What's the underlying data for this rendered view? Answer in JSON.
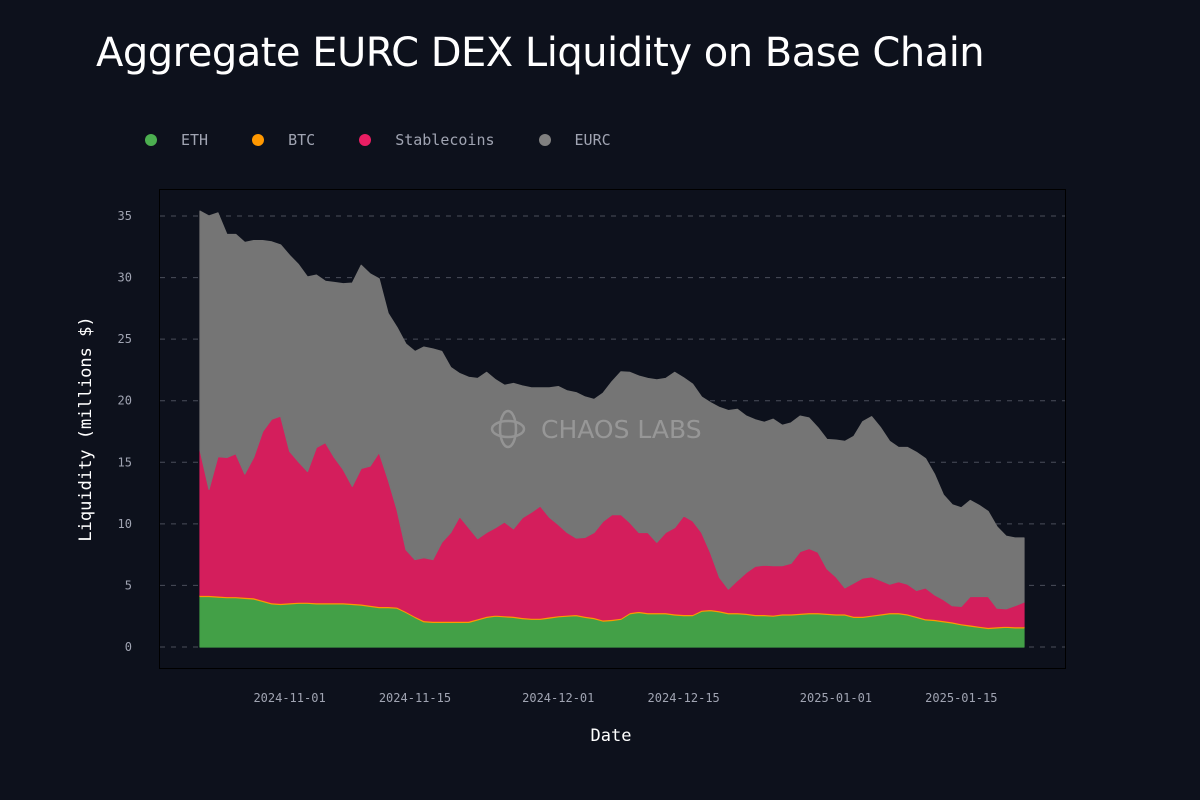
{
  "chart_data": {
    "type": "area",
    "stacked": true,
    "title": "Aggregate EURC DEX Liquidity on Base Chain",
    "xlabel": "Date",
    "ylabel": "Liquidity (millions $)",
    "ylim": [
      0,
      37
    ],
    "yticks": [
      "0",
      "5",
      "10",
      "15",
      "20",
      "25",
      "30",
      "35"
    ],
    "xticks": [
      "2024-11-01",
      "2024-11-15",
      "2024-12-01",
      "2024-12-15",
      "2025-01-01",
      "2025-01-15"
    ],
    "grid": "horizontal dashed",
    "legend": "top-left",
    "watermark": "CHAOS LABS",
    "x": [
      "2024-10-22",
      "2024-10-23",
      "2024-10-24",
      "2024-10-25",
      "2024-10-26",
      "2024-10-27",
      "2024-10-28",
      "2024-10-29",
      "2024-10-30",
      "2024-10-31",
      "2024-11-01",
      "2024-11-02",
      "2024-11-03",
      "2024-11-04",
      "2024-11-05",
      "2024-11-06",
      "2024-11-07",
      "2024-11-08",
      "2024-11-09",
      "2024-11-10",
      "2024-11-11",
      "2024-11-12",
      "2024-11-13",
      "2024-11-14",
      "2024-11-15",
      "2024-11-16",
      "2024-11-17",
      "2024-11-18",
      "2024-11-19",
      "2024-11-20",
      "2024-11-21",
      "2024-11-22",
      "2024-11-23",
      "2024-11-24",
      "2024-11-25",
      "2024-11-26",
      "2024-11-27",
      "2024-11-28",
      "2024-11-29",
      "2024-11-30",
      "2024-12-01",
      "2024-12-02",
      "2024-12-03",
      "2024-12-04",
      "2024-12-05",
      "2024-12-06",
      "2024-12-07",
      "2024-12-08",
      "2024-12-09",
      "2024-12-10",
      "2024-12-11",
      "2024-12-12",
      "2024-12-13",
      "2024-12-14",
      "2024-12-15",
      "2024-12-16",
      "2024-12-17",
      "2024-12-18",
      "2024-12-19",
      "2024-12-20",
      "2024-12-21",
      "2024-12-22",
      "2024-12-23",
      "2024-12-24",
      "2024-12-25",
      "2024-12-26",
      "2024-12-27",
      "2024-12-28",
      "2024-12-29",
      "2024-12-30",
      "2024-12-31",
      "2025-01-01",
      "2025-01-02",
      "2025-01-03",
      "2025-01-04",
      "2025-01-05",
      "2025-01-06",
      "2025-01-07",
      "2025-01-08",
      "2025-01-09",
      "2025-01-10",
      "2025-01-11",
      "2025-01-12",
      "2025-01-13",
      "2025-01-14",
      "2025-01-15",
      "2025-01-16",
      "2025-01-17",
      "2025-01-18",
      "2025-01-19",
      "2025-01-20",
      "2025-01-21",
      "2025-01-22"
    ],
    "series": [
      {
        "name": "ETH",
        "color": "#43a047",
        "values": [
          4.1,
          4.1,
          4.05,
          4.0,
          4.0,
          3.95,
          3.9,
          3.7,
          3.5,
          3.45,
          3.5,
          3.55,
          3.55,
          3.5,
          3.5,
          3.5,
          3.5,
          3.45,
          3.4,
          3.3,
          3.2,
          3.2,
          3.15,
          2.8,
          2.4,
          2.05,
          2.0,
          2.0,
          2.0,
          2.0,
          2.0,
          2.2,
          2.4,
          2.5,
          2.45,
          2.4,
          2.3,
          2.25,
          2.25,
          2.35,
          2.45,
          2.5,
          2.55,
          2.4,
          2.3,
          2.1,
          2.15,
          2.25,
          2.7,
          2.8,
          2.7,
          2.7,
          2.7,
          2.6,
          2.55,
          2.55,
          2.9,
          2.95,
          2.85,
          2.7,
          2.7,
          2.65,
          2.55,
          2.55,
          2.5,
          2.6,
          2.6,
          2.65,
          2.7,
          2.7,
          2.65,
          2.6,
          2.6,
          2.4,
          2.4,
          2.5,
          2.6,
          2.7,
          2.7,
          2.6,
          2.4,
          2.2,
          2.15,
          2.05,
          1.95,
          1.8,
          1.7,
          1.6,
          1.5,
          1.55,
          1.6,
          1.55,
          1.55
        ]
      },
      {
        "name": "BTC",
        "color": "#ff9800",
        "values": [
          0.1,
          0.1,
          0.1,
          0.1,
          0.1,
          0.1,
          0.1,
          0.1,
          0.1,
          0.1,
          0.1,
          0.1,
          0.1,
          0.1,
          0.1,
          0.1,
          0.1,
          0.1,
          0.1,
          0.1,
          0.1,
          0.1,
          0.1,
          0.1,
          0.1,
          0.1,
          0.1,
          0.1,
          0.1,
          0.1,
          0.1,
          0.1,
          0.1,
          0.1,
          0.1,
          0.1,
          0.1,
          0.1,
          0.1,
          0.1,
          0.1,
          0.1,
          0.1,
          0.1,
          0.1,
          0.1,
          0.1,
          0.1,
          0.1,
          0.1,
          0.1,
          0.1,
          0.1,
          0.1,
          0.1,
          0.1,
          0.1,
          0.1,
          0.1,
          0.1,
          0.1,
          0.1,
          0.1,
          0.1,
          0.1,
          0.1,
          0.1,
          0.1,
          0.1,
          0.1,
          0.1,
          0.1,
          0.1,
          0.1,
          0.1,
          0.1,
          0.1,
          0.1,
          0.1,
          0.1,
          0.1,
          0.1,
          0.1,
          0.1,
          0.1,
          0.1,
          0.1,
          0.1,
          0.1,
          0.1,
          0.1,
          0.1,
          0.1
        ]
      },
      {
        "name": "Stablecoins",
        "color": "#d41e5c",
        "values": [
          11.8,
          8.6,
          11.3,
          11.3,
          11.6,
          10.0,
          11.4,
          13.7,
          14.9,
          15.2,
          12.3,
          11.4,
          10.6,
          12.6,
          13.0,
          11.8,
          10.8,
          9.5,
          11.0,
          11.3,
          12.5,
          10.3,
          7.9,
          5.0,
          4.6,
          5.1,
          5.0,
          6.4,
          7.2,
          8.5,
          7.6,
          6.5,
          6.8,
          7.1,
          7.6,
          7.1,
          8.1,
          8.6,
          9.1,
          8.1,
          7.4,
          6.7,
          6.2,
          6.4,
          6.9,
          8.0,
          8.5,
          8.4,
          7.3,
          6.4,
          6.5,
          5.7,
          6.5,
          7.0,
          8.0,
          7.6,
          6.3,
          4.6,
          2.7,
          1.9,
          2.6,
          3.3,
          3.9,
          4.0,
          4.0,
          3.9,
          4.1,
          5.0,
          5.2,
          4.9,
          3.6,
          3.0,
          2.1,
          2.7,
          3.1,
          3.1,
          2.7,
          2.3,
          2.5,
          2.4,
          2.1,
          2.5,
          2.0,
          1.7,
          1.3,
          1.4,
          2.3,
          2.4,
          2.5,
          1.5,
          1.4,
          1.7,
          2.0
        ]
      },
      {
        "name": "EURC",
        "color": "#757575",
        "values": [
          19.4,
          22.2,
          19.8,
          18.1,
          17.8,
          18.8,
          17.6,
          15.5,
          14.4,
          13.9,
          15.9,
          16.0,
          15.8,
          14.0,
          13.1,
          14.2,
          15.1,
          16.5,
          16.5,
          15.6,
          14.1,
          13.5,
          14.8,
          16.7,
          16.9,
          17.1,
          17.1,
          15.5,
          13.4,
          11.6,
          12.2,
          13.0,
          13.0,
          12.0,
          11.1,
          11.8,
          10.7,
          10.1,
          9.6,
          10.5,
          11.2,
          11.5,
          11.8,
          11.4,
          10.8,
          10.4,
          10.8,
          11.6,
          12.2,
          12.7,
          12.5,
          13.2,
          12.5,
          12.6,
          11.2,
          11.1,
          11.0,
          12.2,
          13.8,
          14.5,
          13.9,
          12.7,
          11.9,
          11.6,
          11.9,
          11.4,
          11.4,
          11.0,
          10.6,
          10.1,
          10.5,
          11.1,
          11.9,
          11.9,
          12.7,
          13.0,
          12.4,
          11.6,
          10.9,
          11.1,
          11.2,
          10.5,
          9.8,
          8.5,
          8.2,
          8.0,
          7.8,
          7.4,
          6.9,
          6.6,
          5.9,
          5.5,
          5.2
        ]
      }
    ]
  },
  "colors": {
    "background": "#0d111c",
    "grid": "#4a4e5a",
    "frame": "#000000"
  }
}
